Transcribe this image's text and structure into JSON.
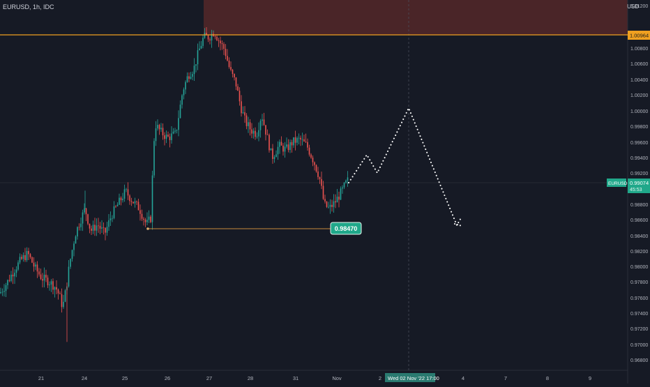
{
  "header": {
    "symbol_title": "EURUSD, 1h, IDC",
    "currency": "USD"
  },
  "price_axis": {
    "ticks": [
      "1.01200",
      "1.00800",
      "1.00600",
      "1.00400",
      "1.00200",
      "1.00000",
      "0.99800",
      "0.99600",
      "0.99400",
      "0.99200",
      "0.98800",
      "0.98600",
      "0.98400",
      "0.98200",
      "0.98000",
      "0.97800",
      "0.97600",
      "0.97400",
      "0.97200",
      "0.97000",
      "0.96800"
    ],
    "resistance_label": "1.00964",
    "symbol_badge": "EURUSD",
    "current_price_label": "0.99074",
    "countdown_label": "45:53"
  },
  "time_axis": {
    "ticks": [
      "21",
      "24",
      "25",
      "26",
      "27",
      "28",
      "31",
      "Nov",
      "2",
      "4",
      "7",
      "8",
      "9"
    ],
    "crosshair_label": "Wed 02 Nov '22   17:00"
  },
  "annotations": {
    "support_label": "0.98470"
  },
  "chart_data": {
    "type": "candlestick",
    "symbol": "EURUSD",
    "interval": "1h",
    "source": "IDC",
    "ylim": [
      0.9665,
      1.0135
    ],
    "resistance_level": 1.00964,
    "current_price": 0.99074,
    "support_level": 0.9847,
    "price_path": [
      [
        0,
        0.9763
      ],
      [
        10,
        0.9776
      ],
      [
        20,
        0.9792
      ],
      [
        30,
        0.9805
      ],
      [
        40,
        0.9813
      ],
      [
        50,
        0.9795
      ],
      [
        60,
        0.9782
      ],
      [
        70,
        0.9778
      ],
      [
        80,
        0.977
      ],
      [
        85,
        0.976
      ],
      [
        90,
        0.9745
      ],
      [
        95,
        0.977
      ],
      [
        100,
        0.9802
      ],
      [
        108,
        0.9838
      ],
      [
        115,
        0.9855
      ],
      [
        122,
        0.987
      ],
      [
        130,
        0.9842
      ],
      [
        140,
        0.985
      ],
      [
        150,
        0.9838
      ],
      [
        160,
        0.9862
      ],
      [
        170,
        0.9877
      ],
      [
        180,
        0.9892
      ],
      [
        190,
        0.988
      ],
      [
        200,
        0.987
      ],
      [
        210,
        0.985
      ],
      [
        216,
        0.9858
      ],
      [
        219,
        0.992
      ],
      [
        222,
        0.9978
      ],
      [
        230,
        0.9968
      ],
      [
        240,
        0.996
      ],
      [
        252,
        0.9965
      ],
      [
        262,
        1.002
      ],
      [
        270,
        1.004
      ],
      [
        278,
        1.0048
      ],
      [
        285,
        1.007
      ],
      [
        292,
        1.0088
      ],
      [
        300,
        1.0088
      ],
      [
        307,
        1.0095
      ],
      [
        315,
        1.0082
      ],
      [
        322,
        1.0072
      ],
      [
        330,
        1.0045
      ],
      [
        338,
        1.003
      ],
      [
        345,
        1.0
      ],
      [
        352,
        0.998
      ],
      [
        360,
        0.997
      ],
      [
        368,
        0.9965
      ],
      [
        375,
        0.999
      ],
      [
        382,
        0.9965
      ],
      [
        390,
        0.9935
      ],
      [
        400,
        0.995
      ],
      [
        410,
        0.9945
      ],
      [
        420,
        0.9955
      ],
      [
        430,
        0.9958
      ],
      [
        440,
        0.995
      ],
      [
        450,
        0.993
      ],
      [
        458,
        0.991
      ],
      [
        465,
        0.9875
      ],
      [
        472,
        0.987
      ],
      [
        480,
        0.9878
      ],
      [
        490,
        0.9892
      ],
      [
        497,
        0.9904
      ],
      [
        500,
        0.99074
      ]
    ],
    "projection": {
      "line_style": "dotted",
      "points": [
        [
          "Oct 31",
          0.99074
        ],
        [
          "Nov 1",
          0.994
        ],
        [
          "Nov 1",
          0.99225
        ],
        [
          "Nov 2",
          1.0002
        ],
        [
          "Nov 3",
          0.98545
        ],
        [
          "Nov 3",
          0.9861
        ]
      ]
    },
    "resistance_zone": {
      "from": 1.00964,
      "to": 1.0135,
      "color": "#4a2528"
    },
    "colors": {
      "up": "#26a69a",
      "down": "#ef5350",
      "resistance_line": "#f0a020",
      "support_line": "#c88a3a",
      "badge": "#20a88a",
      "crosshair_badge": "#2a7a70"
    }
  }
}
